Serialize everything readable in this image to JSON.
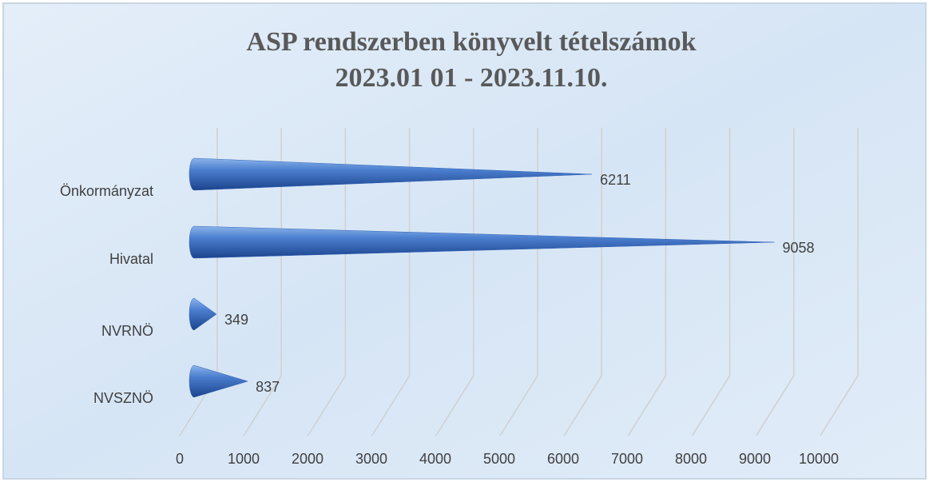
{
  "chart_data": {
    "type": "cone-bar",
    "title": "ASP rendszerben  könyvelt tételszámok",
    "subtitle": "2023.01 01 - 2023.11.10.",
    "categories": [
      "Önkormányzat",
      "Hivatal",
      "NVRNÖ",
      "NVSZNÖ"
    ],
    "values": [
      6211,
      9058,
      349,
      837
    ],
    "color": "#2f62b8",
    "xlim": [
      0,
      10000
    ],
    "xticks": [
      0,
      1000,
      2000,
      3000,
      4000,
      5000,
      6000,
      7000,
      8000,
      9000,
      10000
    ],
    "grid": true
  }
}
